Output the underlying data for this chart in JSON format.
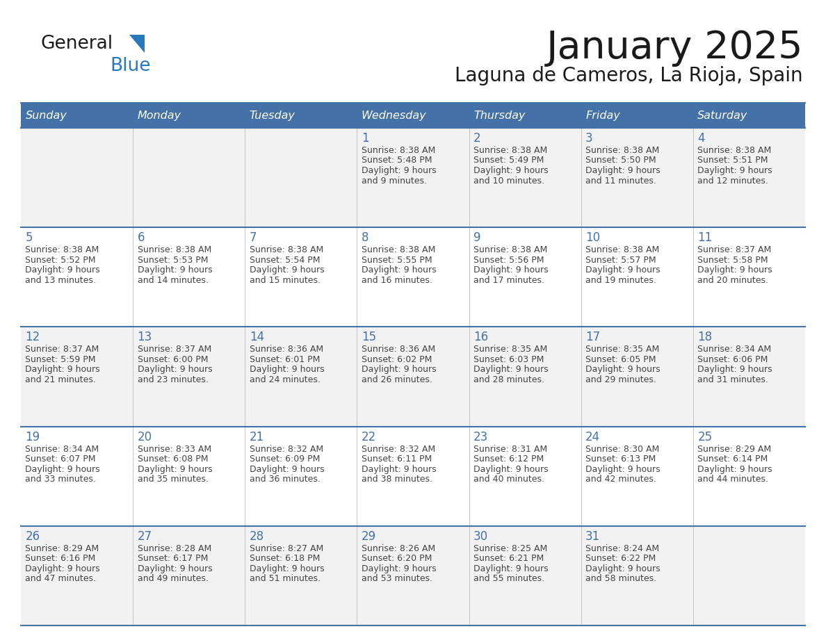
{
  "title": "January 2025",
  "subtitle": "Laguna de Cameros, La Rioja, Spain",
  "days_of_week": [
    "Sunday",
    "Monday",
    "Tuesday",
    "Wednesday",
    "Thursday",
    "Friday",
    "Saturday"
  ],
  "header_bg": "#4472a8",
  "header_text": "#ffffff",
  "cell_bg": "#f2f2f2",
  "cell_bg_alt": "#ffffff",
  "line_color": "#4472a8",
  "text_color": "#444444",
  "day_number_color": "#4472a8",
  "calendar_data": [
    [
      null,
      null,
      null,
      {
        "day": 1,
        "sunrise": "8:38 AM",
        "sunset": "5:48 PM",
        "daylight": "9 hours and 9 minutes."
      },
      {
        "day": 2,
        "sunrise": "8:38 AM",
        "sunset": "5:49 PM",
        "daylight": "9 hours and 10 minutes."
      },
      {
        "day": 3,
        "sunrise": "8:38 AM",
        "sunset": "5:50 PM",
        "daylight": "9 hours and 11 minutes."
      },
      {
        "day": 4,
        "sunrise": "8:38 AM",
        "sunset": "5:51 PM",
        "daylight": "9 hours and 12 minutes."
      }
    ],
    [
      {
        "day": 5,
        "sunrise": "8:38 AM",
        "sunset": "5:52 PM",
        "daylight": "9 hours and 13 minutes."
      },
      {
        "day": 6,
        "sunrise": "8:38 AM",
        "sunset": "5:53 PM",
        "daylight": "9 hours and 14 minutes."
      },
      {
        "day": 7,
        "sunrise": "8:38 AM",
        "sunset": "5:54 PM",
        "daylight": "9 hours and 15 minutes."
      },
      {
        "day": 8,
        "sunrise": "8:38 AM",
        "sunset": "5:55 PM",
        "daylight": "9 hours and 16 minutes."
      },
      {
        "day": 9,
        "sunrise": "8:38 AM",
        "sunset": "5:56 PM",
        "daylight": "9 hours and 17 minutes."
      },
      {
        "day": 10,
        "sunrise": "8:38 AM",
        "sunset": "5:57 PM",
        "daylight": "9 hours and 19 minutes."
      },
      {
        "day": 11,
        "sunrise": "8:37 AM",
        "sunset": "5:58 PM",
        "daylight": "9 hours and 20 minutes."
      }
    ],
    [
      {
        "day": 12,
        "sunrise": "8:37 AM",
        "sunset": "5:59 PM",
        "daylight": "9 hours and 21 minutes."
      },
      {
        "day": 13,
        "sunrise": "8:37 AM",
        "sunset": "6:00 PM",
        "daylight": "9 hours and 23 minutes."
      },
      {
        "day": 14,
        "sunrise": "8:36 AM",
        "sunset": "6:01 PM",
        "daylight": "9 hours and 24 minutes."
      },
      {
        "day": 15,
        "sunrise": "8:36 AM",
        "sunset": "6:02 PM",
        "daylight": "9 hours and 26 minutes."
      },
      {
        "day": 16,
        "sunrise": "8:35 AM",
        "sunset": "6:03 PM",
        "daylight": "9 hours and 28 minutes."
      },
      {
        "day": 17,
        "sunrise": "8:35 AM",
        "sunset": "6:05 PM",
        "daylight": "9 hours and 29 minutes."
      },
      {
        "day": 18,
        "sunrise": "8:34 AM",
        "sunset": "6:06 PM",
        "daylight": "9 hours and 31 minutes."
      }
    ],
    [
      {
        "day": 19,
        "sunrise": "8:34 AM",
        "sunset": "6:07 PM",
        "daylight": "9 hours and 33 minutes."
      },
      {
        "day": 20,
        "sunrise": "8:33 AM",
        "sunset": "6:08 PM",
        "daylight": "9 hours and 35 minutes."
      },
      {
        "day": 21,
        "sunrise": "8:32 AM",
        "sunset": "6:09 PM",
        "daylight": "9 hours and 36 minutes."
      },
      {
        "day": 22,
        "sunrise": "8:32 AM",
        "sunset": "6:11 PM",
        "daylight": "9 hours and 38 minutes."
      },
      {
        "day": 23,
        "sunrise": "8:31 AM",
        "sunset": "6:12 PM",
        "daylight": "9 hours and 40 minutes."
      },
      {
        "day": 24,
        "sunrise": "8:30 AM",
        "sunset": "6:13 PM",
        "daylight": "9 hours and 42 minutes."
      },
      {
        "day": 25,
        "sunrise": "8:29 AM",
        "sunset": "6:14 PM",
        "daylight": "9 hours and 44 minutes."
      }
    ],
    [
      {
        "day": 26,
        "sunrise": "8:29 AM",
        "sunset": "6:16 PM",
        "daylight": "9 hours and 47 minutes."
      },
      {
        "day": 27,
        "sunrise": "8:28 AM",
        "sunset": "6:17 PM",
        "daylight": "9 hours and 49 minutes."
      },
      {
        "day": 28,
        "sunrise": "8:27 AM",
        "sunset": "6:18 PM",
        "daylight": "9 hours and 51 minutes."
      },
      {
        "day": 29,
        "sunrise": "8:26 AM",
        "sunset": "6:20 PM",
        "daylight": "9 hours and 53 minutes."
      },
      {
        "day": 30,
        "sunrise": "8:25 AM",
        "sunset": "6:21 PM",
        "daylight": "9 hours and 55 minutes."
      },
      {
        "day": 31,
        "sunrise": "8:24 AM",
        "sunset": "6:22 PM",
        "daylight": "9 hours and 58 minutes."
      },
      null
    ]
  ],
  "logo_general_color": "#1a1a1a",
  "logo_blue_color": "#2878be",
  "logo_triangle_color": "#2878be"
}
